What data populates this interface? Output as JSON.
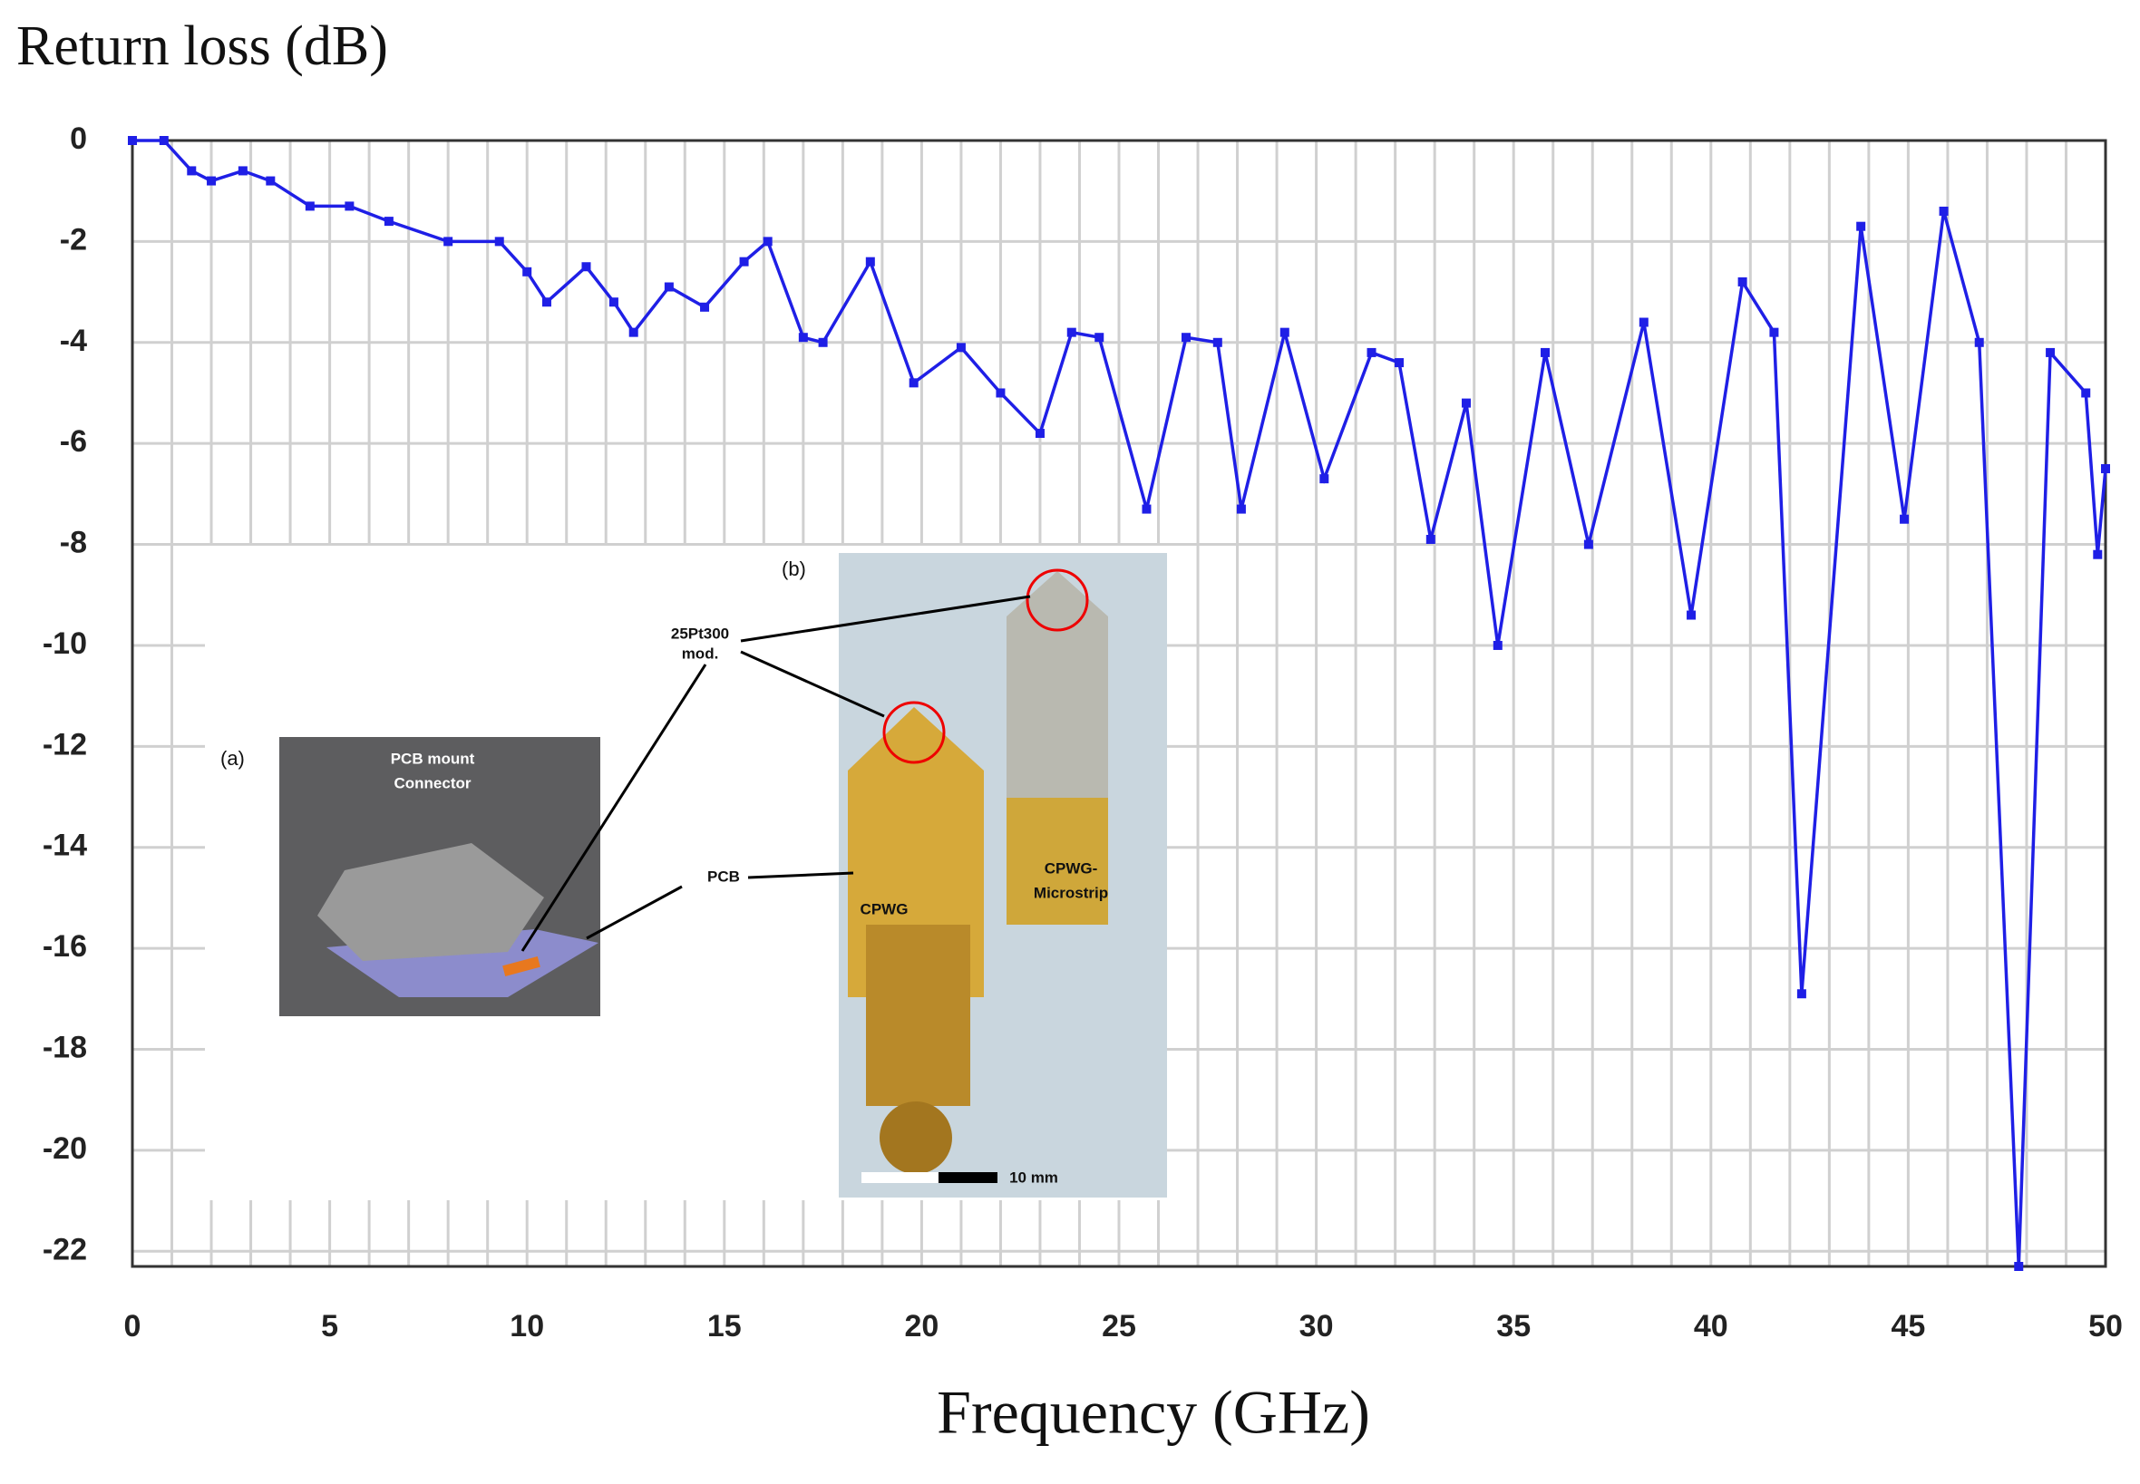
{
  "chart_data": {
    "type": "line",
    "ylabel": "Return loss  (dB)",
    "xlabel": "Frequency  (GHz)",
    "xlim": [
      0,
      50
    ],
    "ylim": [
      -22.3,
      0
    ],
    "xticks": [
      0,
      5,
      10,
      15,
      20,
      25,
      30,
      35,
      40,
      45,
      50
    ],
    "yticks": [
      0,
      -2,
      -4,
      -6,
      -8,
      -10,
      -12,
      -14,
      -16,
      -18,
      -20,
      -22
    ],
    "xgrid": [
      0,
      1,
      2,
      3,
      4,
      5,
      6,
      7,
      8,
      9,
      10,
      11,
      12,
      13,
      14,
      15,
      16,
      17,
      18,
      19,
      20,
      21,
      22,
      23,
      24,
      25,
      26,
      27,
      28,
      29,
      30,
      31,
      32,
      33,
      34,
      35,
      36,
      37,
      38,
      39,
      40,
      41,
      42,
      43,
      44,
      45,
      46,
      47,
      48,
      49,
      50
    ],
    "grid": true,
    "series": [
      {
        "color": "#1f1fe6",
        "x": [
          0,
          0.8,
          1.5,
          2,
          2.8,
          3.5,
          4.5,
          5.5,
          6.5,
          8,
          9.3,
          10,
          10.5,
          11.5,
          12.2,
          12.7,
          13.6,
          14.5,
          15.5,
          16.1,
          17,
          17.5,
          18.7,
          19.8,
          21,
          22,
          23,
          23.8,
          24.5,
          25.7,
          26.7,
          27.5,
          28.1,
          29.2,
          30.2,
          31.4,
          32.1,
          32.9,
          33.8,
          34.6,
          35.8,
          36.9,
          38.3,
          39.5,
          40.8,
          41.6,
          42.3,
          43.8,
          44.9,
          45.9,
          46.8,
          47.8,
          48.6,
          49.5,
          49.8,
          50
        ],
        "values": [
          0,
          0,
          -0.6,
          -0.8,
          -0.6,
          -0.8,
          -1.3,
          -1.3,
          -1.6,
          -2.0,
          -2.0,
          -2.6,
          -3.2,
          -2.5,
          -3.2,
          -3.8,
          -2.9,
          -3.3,
          -2.4,
          -2.0,
          -3.9,
          -4.0,
          -2.4,
          -4.8,
          -4.1,
          -5.0,
          -5.8,
          -3.8,
          -3.9,
          -7.3,
          -3.9,
          -4.0,
          -7.3,
          -3.8,
          -6.7,
          -4.2,
          -4.4,
          -7.9,
          -5.2,
          -10.0,
          -4.2,
          -8.0,
          -3.6,
          -9.4,
          -2.8,
          -3.8,
          -16.9,
          -1.7,
          -7.5,
          -1.4,
          -4.0,
          -22.3,
          -4.2,
          -5.0,
          -8.2,
          -6.5
        ]
      }
    ],
    "annotations": [
      "(a)",
      "PCB mount",
      "Connector",
      "PCB",
      "25Pt300",
      "mod.",
      "(b)",
      "CPWG",
      "CPWG-",
      "Microstrip",
      "10 mm"
    ]
  }
}
